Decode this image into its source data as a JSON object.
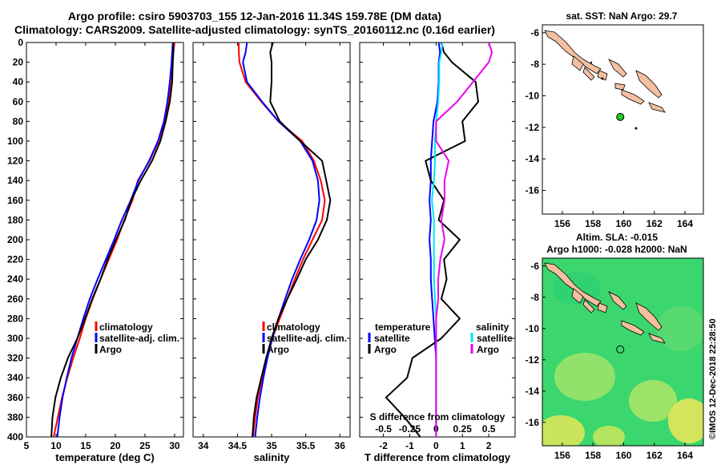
{
  "title": {
    "line1": "Argo profile: csiro 5903703_155 12-Jan-2016 11.34S 159.78E (DM data)",
    "line2": "Climatology: CARS2009. Satellite-adjusted climatology: synTS_20160112.nc (0.16d earlier)"
  },
  "colors": {
    "climatology": "#ff0000",
    "satellite": "#0000ff",
    "argo": "#000000",
    "sal_sat": "#00e5ff",
    "sal_argo": "#ee00ee",
    "land": "#f5c0a0",
    "float": "#22cc22"
  },
  "depth_axis": {
    "ticks": [
      "0",
      "20",
      "40",
      "60",
      "80",
      "100",
      "120",
      "140",
      "160",
      "180",
      "200",
      "220",
      "240",
      "260",
      "280",
      "300",
      "320",
      "340",
      "360",
      "380",
      "400"
    ]
  },
  "chart_data": [
    {
      "id": "temperature",
      "type": "line",
      "xlabel": "temperature (deg C)",
      "ylabel": "",
      "xlim": [
        5,
        31.5
      ],
      "ylim": [
        0,
        400
      ],
      "x_ticks": [
        "5",
        "10",
        "15",
        "20",
        "25",
        "30"
      ],
      "legend": [
        "climatology",
        "satellite-adj. clim.",
        "Argo"
      ],
      "legend_position": "bottom-right",
      "series": [
        {
          "name": "climatology",
          "color": "#ff0000",
          "points": [
            [
              30.0,
              0
            ],
            [
              29.8,
              10
            ],
            [
              29.6,
              20
            ],
            [
              29.3,
              40
            ],
            [
              29.0,
              60
            ],
            [
              28.3,
              80
            ],
            [
              27.3,
              100
            ],
            [
              25.8,
              120
            ],
            [
              23.8,
              140
            ],
            [
              22.9,
              160
            ],
            [
              21.5,
              180
            ],
            [
              20.3,
              200
            ],
            [
              18.9,
              220
            ],
            [
              17.5,
              240
            ],
            [
              16.2,
              260
            ],
            [
              15.0,
              280
            ],
            [
              14.0,
              300
            ],
            [
              12.9,
              320
            ],
            [
              11.9,
              340
            ],
            [
              11.0,
              360
            ],
            [
              10.3,
              380
            ],
            [
              9.6,
              400
            ]
          ]
        },
        {
          "name": "satellite-adj. clim.",
          "color": "#0000ff",
          "points": [
            [
              29.7,
              0
            ],
            [
              29.6,
              10
            ],
            [
              29.5,
              20
            ],
            [
              29.2,
              40
            ],
            [
              28.8,
              60
            ],
            [
              28.2,
              80
            ],
            [
              27.2,
              100
            ],
            [
              25.7,
              120
            ],
            [
              23.9,
              140
            ],
            [
              22.6,
              160
            ],
            [
              21.1,
              180
            ],
            [
              19.8,
              200
            ],
            [
              18.4,
              220
            ],
            [
              17.0,
              240
            ],
            [
              15.7,
              260
            ],
            [
              14.6,
              280
            ],
            [
              13.6,
              300
            ],
            [
              12.6,
              320
            ],
            [
              11.8,
              340
            ],
            [
              11.1,
              360
            ],
            [
              10.6,
              380
            ],
            [
              10.2,
              400
            ]
          ]
        },
        {
          "name": "Argo",
          "color": "#000000",
          "points": [
            [
              29.8,
              0
            ],
            [
              29.8,
              10
            ],
            [
              29.7,
              20
            ],
            [
              29.6,
              40
            ],
            [
              29.2,
              60
            ],
            [
              28.5,
              80
            ],
            [
              27.6,
              100
            ],
            [
              26.2,
              120
            ],
            [
              24.3,
              140
            ],
            [
              22.7,
              160
            ],
            [
              21.6,
              180
            ],
            [
              20.1,
              200
            ],
            [
              18.7,
              220
            ],
            [
              17.5,
              240
            ],
            [
              16.1,
              260
            ],
            [
              14.9,
              280
            ],
            [
              13.6,
              300
            ],
            [
              12.0,
              320
            ],
            [
              10.8,
              340
            ],
            [
              9.9,
              360
            ],
            [
              9.4,
              380
            ],
            [
              9.2,
              400
            ]
          ]
        }
      ]
    },
    {
      "id": "salinity",
      "type": "line",
      "xlabel": "salinity",
      "ylabel": "",
      "xlim": [
        33.85,
        36.15
      ],
      "ylim": [
        0,
        400
      ],
      "x_ticks": [
        "34",
        "34.5",
        "35",
        "35.5",
        "36"
      ],
      "legend": [
        "climatology",
        "satellite-adj. clim.",
        "Argo"
      ],
      "legend_position": "bottom-right",
      "series": [
        {
          "name": "climatology",
          "color": "#ff0000",
          "points": [
            [
              34.52,
              0
            ],
            [
              34.52,
              10
            ],
            [
              34.53,
              20
            ],
            [
              34.62,
              40
            ],
            [
              34.85,
              60
            ],
            [
              35.1,
              80
            ],
            [
              35.45,
              100
            ],
            [
              35.62,
              120
            ],
            [
              35.72,
              140
            ],
            [
              35.78,
              160
            ],
            [
              35.74,
              180
            ],
            [
              35.6,
              200
            ],
            [
              35.46,
              220
            ],
            [
              35.34,
              240
            ],
            [
              35.23,
              260
            ],
            [
              35.12,
              280
            ],
            [
              35.01,
              300
            ],
            [
              34.93,
              320
            ],
            [
              34.86,
              340
            ],
            [
              34.8,
              360
            ],
            [
              34.76,
              380
            ],
            [
              34.73,
              400
            ]
          ]
        },
        {
          "name": "satellite-adj. clim.",
          "color": "#0000ff",
          "points": [
            [
              34.64,
              0
            ],
            [
              34.62,
              10
            ],
            [
              34.58,
              20
            ],
            [
              34.64,
              40
            ],
            [
              34.86,
              60
            ],
            [
              35.1,
              80
            ],
            [
              35.42,
              100
            ],
            [
              35.6,
              120
            ],
            [
              35.68,
              140
            ],
            [
              35.7,
              160
            ],
            [
              35.66,
              180
            ],
            [
              35.55,
              200
            ],
            [
              35.42,
              220
            ],
            [
              35.3,
              240
            ],
            [
              35.2,
              260
            ],
            [
              35.1,
              280
            ],
            [
              35.01,
              300
            ],
            [
              34.94,
              320
            ],
            [
              34.88,
              340
            ],
            [
              34.83,
              360
            ],
            [
              34.79,
              380
            ],
            [
              34.76,
              400
            ]
          ]
        },
        {
          "name": "Argo",
          "color": "#000000",
          "points": [
            [
              35.02,
              0
            ],
            [
              34.98,
              10
            ],
            [
              35.0,
              20
            ],
            [
              35.0,
              40
            ],
            [
              34.98,
              60
            ],
            [
              35.12,
              80
            ],
            [
              35.42,
              100
            ],
            [
              35.74,
              120
            ],
            [
              35.8,
              140
            ],
            [
              35.86,
              160
            ],
            [
              35.81,
              180
            ],
            [
              35.68,
              200
            ],
            [
              35.5,
              220
            ],
            [
              35.37,
              240
            ],
            [
              35.23,
              260
            ],
            [
              35.1,
              280
            ],
            [
              35.0,
              300
            ],
            [
              34.92,
              320
            ],
            [
              34.85,
              340
            ],
            [
              34.78,
              360
            ],
            [
              34.74,
              380
            ],
            [
              34.72,
              400
            ]
          ]
        }
      ]
    },
    {
      "id": "difference",
      "type": "line",
      "xlabel": "T difference from climatology",
      "x2label": "S difference from climatology",
      "xlim": [
        -2.9,
        3.0
      ],
      "x2lim": [
        -0.725,
        0.75
      ],
      "ylim": [
        0,
        400
      ],
      "x_ticks": [
        "-2",
        "-1",
        "0",
        "1",
        "2"
      ],
      "x2_ticks": [
        "-0.5",
        "-0.25",
        "0",
        "0.25",
        "0.5"
      ],
      "legend_left_title": "temperature",
      "legend_right_title": "salinity",
      "legend_left": [
        "satellite",
        "Argo"
      ],
      "legend_right": [
        "satellite",
        "Argo"
      ],
      "series": [
        {
          "name": "T satellite",
          "axis": "T",
          "color": "#0000ff",
          "points": [
            [
              0.1,
              0
            ],
            [
              0.15,
              10
            ],
            [
              0.1,
              20
            ],
            [
              0.1,
              40
            ],
            [
              0.05,
              60
            ],
            [
              -0.1,
              80
            ],
            [
              -0.15,
              100
            ],
            [
              -0.2,
              120
            ],
            [
              -0.2,
              140
            ],
            [
              -0.25,
              160
            ],
            [
              -0.2,
              180
            ],
            [
              -0.25,
              200
            ],
            [
              -0.2,
              220
            ],
            [
              -0.2,
              240
            ],
            [
              -0.15,
              260
            ],
            [
              -0.1,
              280
            ],
            [
              -0.05,
              300
            ],
            [
              0.0,
              320
            ],
            [
              0.0,
              340
            ],
            [
              0.0,
              360
            ],
            [
              0.0,
              380
            ],
            [
              0.0,
              400
            ]
          ]
        },
        {
          "name": "T Argo",
          "axis": "T",
          "color": "#000000",
          "points": [
            [
              0.2,
              0
            ],
            [
              0.3,
              10
            ],
            [
              0.6,
              20
            ],
            [
              1.5,
              40
            ],
            [
              1.6,
              60
            ],
            [
              1.0,
              80
            ],
            [
              1.1,
              100
            ],
            [
              -0.4,
              120
            ],
            [
              -0.2,
              140
            ],
            [
              0.3,
              160
            ],
            [
              0.1,
              180
            ],
            [
              0.9,
              200
            ],
            [
              0.3,
              220
            ],
            [
              0.4,
              240
            ],
            [
              0.2,
              260
            ],
            [
              0.9,
              280
            ],
            [
              0.2,
              300
            ],
            [
              -0.9,
              320
            ],
            [
              -1.1,
              340
            ],
            [
              -1.9,
              360
            ],
            [
              -1.2,
              380
            ],
            [
              -0.6,
              400
            ]
          ]
        },
        {
          "name": "S satellite",
          "axis": "S",
          "color": "#00e5ff",
          "points": [
            [
              0.06,
              0
            ],
            [
              0.05,
              10
            ],
            [
              0.03,
              20
            ],
            [
              0.03,
              40
            ],
            [
              0.02,
              60
            ],
            [
              0.0,
              80
            ],
            [
              -0.01,
              100
            ],
            [
              -0.01,
              120
            ],
            [
              -0.02,
              140
            ],
            [
              -0.04,
              160
            ],
            [
              -0.02,
              180
            ],
            [
              -0.02,
              200
            ],
            [
              -0.02,
              220
            ],
            [
              -0.02,
              240
            ],
            [
              -0.01,
              260
            ],
            [
              0.0,
              280
            ],
            [
              0.0,
              300
            ],
            [
              0.0,
              320
            ],
            [
              0.0,
              340
            ],
            [
              0.0,
              360
            ],
            [
              0.0,
              380
            ],
            [
              0.0,
              400
            ]
          ]
        },
        {
          "name": "S Argo",
          "axis": "S",
          "color": "#ee00ee",
          "points": [
            [
              0.5,
              0
            ],
            [
              0.53,
              10
            ],
            [
              0.5,
              20
            ],
            [
              0.35,
              40
            ],
            [
              0.2,
              60
            ],
            [
              0.0,
              80
            ],
            [
              0.0,
              100
            ],
            [
              0.12,
              120
            ],
            [
              0.08,
              140
            ],
            [
              0.08,
              160
            ],
            [
              0.05,
              180
            ],
            [
              0.08,
              200
            ],
            [
              0.04,
              220
            ],
            [
              0.02,
              240
            ],
            [
              0.02,
              260
            ],
            [
              0.0,
              280
            ],
            [
              0.0,
              300
            ],
            [
              0.0,
              320
            ],
            [
              0.0,
              340
            ],
            [
              0.0,
              360
            ],
            [
              0.0,
              380
            ],
            [
              0.0,
              400
            ]
          ]
        }
      ]
    }
  ],
  "map_sst": {
    "title": "sat. SST: NaN Argo: 29.7",
    "lon_ticks": [
      "156",
      "158",
      "160",
      "162",
      "164"
    ],
    "lat_ticks": [
      "-6",
      "-8",
      "-10",
      "-12",
      "-14",
      "-16"
    ],
    "lon_range": [
      154.7,
      165.2
    ],
    "lat_range": [
      -17.5,
      -5.5
    ],
    "float_position": {
      "lon": 159.78,
      "lat": -11.34
    }
  },
  "map_sla": {
    "title_line1": "Altim. SLA: -0.015",
    "title_line2": "Argo h1000: -0.028 h2000: NaN",
    "lon_ticks": [
      "156",
      "158",
      "160",
      "162",
      "164"
    ],
    "lat_ticks": [
      "-6",
      "-8",
      "-10",
      "-12",
      "-14",
      "-16"
    ],
    "lon_range": [
      154.7,
      165.2
    ],
    "lat_range": [
      -17.5,
      -5.5
    ],
    "float_position": {
      "lon": 159.78,
      "lat": -11.34
    }
  },
  "credit": "©IMOS 12-Dec-2018 22:28:50"
}
